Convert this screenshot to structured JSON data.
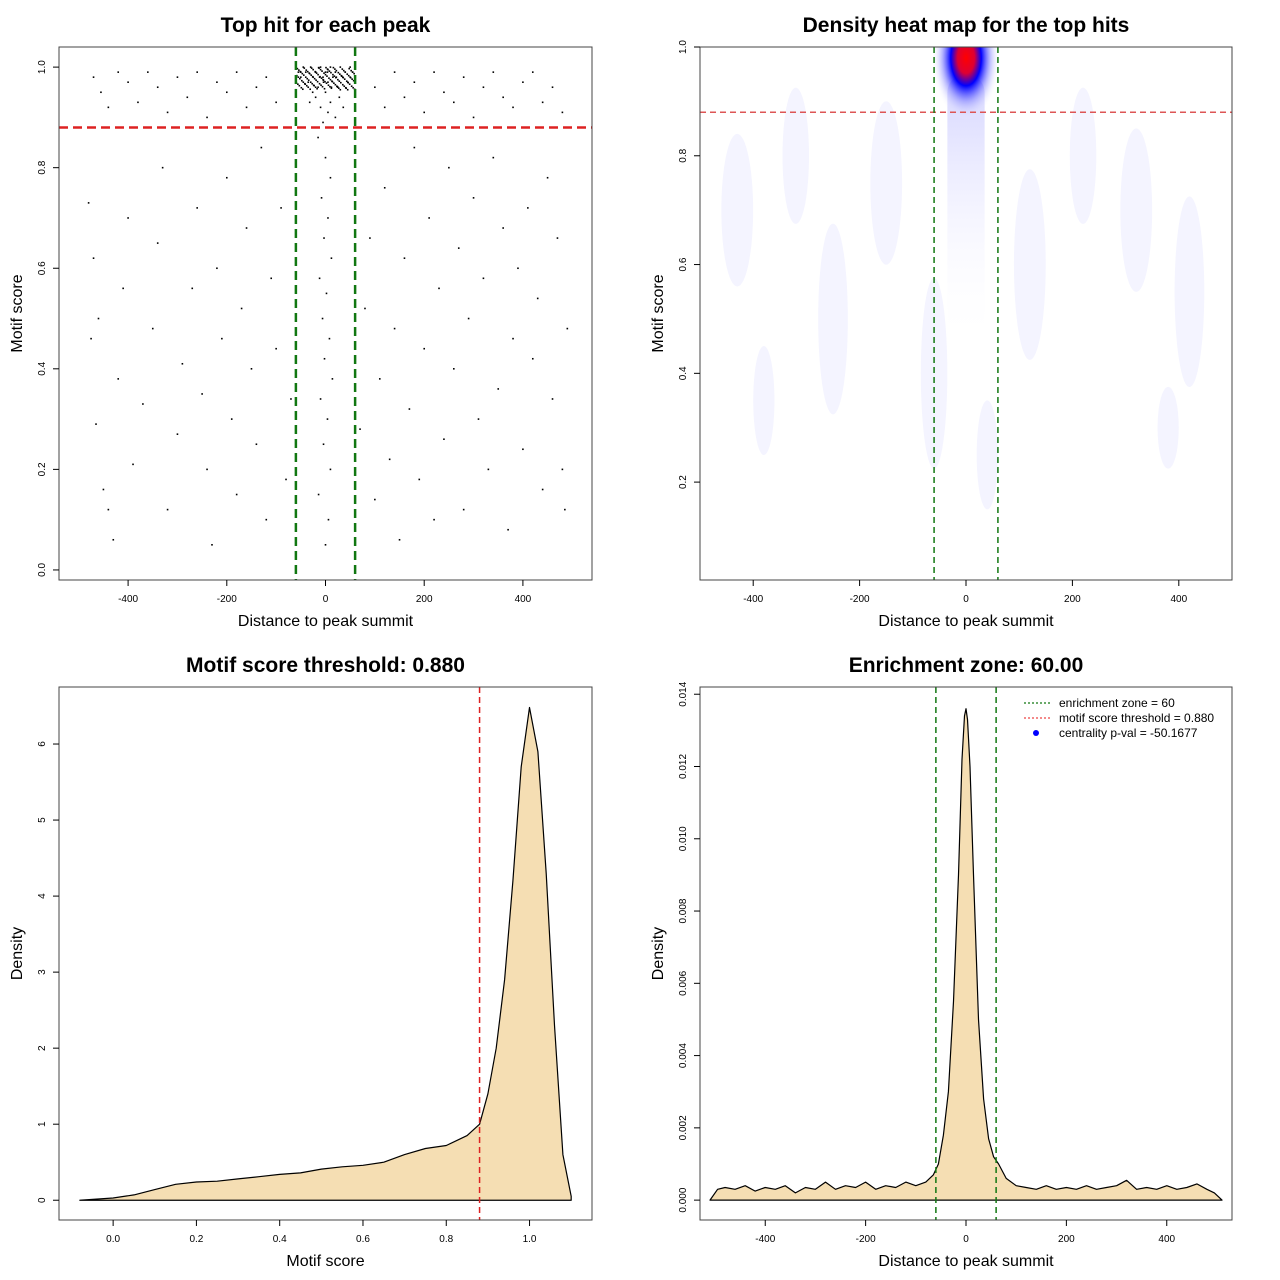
{
  "chart_data": [
    {
      "type": "scatter",
      "title": "Top hit for each peak",
      "xlabel": "Distance to peak summit",
      "ylabel": "Motif score",
      "xlim": [
        -540,
        540
      ],
      "ylim": [
        -0.02,
        1.04
      ],
      "xticks": [
        "-400",
        "-200",
        "0",
        "200",
        "400"
      ],
      "xtick_values": [
        -400,
        -200,
        0,
        200,
        400
      ],
      "yticks": [
        "0.0",
        "0.2",
        "0.4",
        "0.6",
        "0.8",
        "1.0"
      ],
      "ytick_values": [
        0,
        0.2,
        0.4,
        0.6,
        0.8,
        1.0
      ],
      "hlines": [
        {
          "y": 0.88,
          "color": "#dd2222"
        }
      ],
      "vlines": [
        {
          "x": -60,
          "color": "#117711"
        },
        {
          "x": 60,
          "color": "#117711"
        }
      ],
      "points": [
        [
          -470,
          0.98
        ],
        [
          -455,
          0.95
        ],
        [
          -440,
          0.92
        ],
        [
          -420,
          0.99
        ],
        [
          -400,
          0.97
        ],
        [
          -380,
          0.93
        ],
        [
          -360,
          0.99
        ],
        [
          -340,
          0.96
        ],
        [
          -320,
          0.91
        ],
        [
          -300,
          0.98
        ],
        [
          -280,
          0.94
        ],
        [
          -260,
          0.99
        ],
        [
          -240,
          0.9
        ],
        [
          -220,
          0.97
        ],
        [
          -200,
          0.95
        ],
        [
          -180,
          0.99
        ],
        [
          -160,
          0.92
        ],
        [
          -140,
          0.96
        ],
        [
          -120,
          0.98
        ],
        [
          -100,
          0.93
        ],
        [
          100,
          0.96
        ],
        [
          120,
          0.92
        ],
        [
          140,
          0.99
        ],
        [
          160,
          0.94
        ],
        [
          180,
          0.97
        ],
        [
          200,
          0.91
        ],
        [
          220,
          0.99
        ],
        [
          240,
          0.95
        ],
        [
          260,
          0.93
        ],
        [
          280,
          0.98
        ],
        [
          300,
          0.9
        ],
        [
          320,
          0.96
        ],
        [
          340,
          0.99
        ],
        [
          360,
          0.94
        ],
        [
          380,
          0.92
        ],
        [
          400,
          0.97
        ],
        [
          420,
          0.99
        ],
        [
          440,
          0.93
        ],
        [
          460,
          0.96
        ],
        [
          480,
          0.91
        ],
        [
          -480,
          0.73
        ],
        [
          -470,
          0.62
        ],
        [
          -460,
          0.5
        ],
        [
          -475,
          0.46
        ],
        [
          -465,
          0.29
        ],
        [
          -450,
          0.16
        ],
        [
          -440,
          0.12
        ],
        [
          -430,
          0.06
        ],
        [
          -420,
          0.38
        ],
        [
          -410,
          0.56
        ],
        [
          -400,
          0.7
        ],
        [
          -390,
          0.21
        ],
        [
          -370,
          0.33
        ],
        [
          -350,
          0.48
        ],
        [
          -340,
          0.65
        ],
        [
          -330,
          0.8
        ],
        [
          -320,
          0.12
        ],
        [
          -300,
          0.27
        ],
        [
          -290,
          0.41
        ],
        [
          -270,
          0.56
        ],
        [
          -260,
          0.72
        ],
        [
          -250,
          0.35
        ],
        [
          -240,
          0.2
        ],
        [
          -230,
          0.05
        ],
        [
          -220,
          0.6
        ],
        [
          -210,
          0.46
        ],
        [
          -200,
          0.78
        ],
        [
          -190,
          0.3
        ],
        [
          -180,
          0.15
        ],
        [
          -170,
          0.52
        ],
        [
          -160,
          0.68
        ],
        [
          -150,
          0.4
        ],
        [
          -140,
          0.25
        ],
        [
          -130,
          0.84
        ],
        [
          -120,
          0.1
        ],
        [
          -110,
          0.58
        ],
        [
          -100,
          0.44
        ],
        [
          -90,
          0.72
        ],
        [
          -80,
          0.18
        ],
        [
          -70,
          0.34
        ],
        [
          70,
          0.28
        ],
        [
          80,
          0.52
        ],
        [
          90,
          0.66
        ],
        [
          100,
          0.14
        ],
        [
          110,
          0.38
        ],
        [
          120,
          0.76
        ],
        [
          130,
          0.22
        ],
        [
          140,
          0.48
        ],
        [
          150,
          0.06
        ],
        [
          160,
          0.62
        ],
        [
          170,
          0.32
        ],
        [
          180,
          0.84
        ],
        [
          190,
          0.18
        ],
        [
          200,
          0.44
        ],
        [
          210,
          0.7
        ],
        [
          220,
          0.1
        ],
        [
          230,
          0.56
        ],
        [
          240,
          0.26
        ],
        [
          250,
          0.8
        ],
        [
          260,
          0.4
        ],
        [
          270,
          0.64
        ],
        [
          280,
          0.12
        ],
        [
          290,
          0.5
        ],
        [
          300,
          0.74
        ],
        [
          310,
          0.3
        ],
        [
          320,
          0.58
        ],
        [
          330,
          0.2
        ],
        [
          340,
          0.82
        ],
        [
          350,
          0.36
        ],
        [
          360,
          0.68
        ],
        [
          370,
          0.08
        ],
        [
          380,
          0.46
        ],
        [
          390,
          0.6
        ],
        [
          400,
          0.24
        ],
        [
          410,
          0.72
        ],
        [
          420,
          0.42
        ],
        [
          430,
          0.54
        ],
        [
          440,
          0.16
        ],
        [
          450,
          0.78
        ],
        [
          460,
          0.34
        ],
        [
          470,
          0.66
        ],
        [
          480,
          0.2
        ],
        [
          490,
          0.48
        ],
        [
          485,
          0.12
        ],
        [
          -55,
          0.99
        ],
        [
          -50,
          0.98
        ],
        [
          -45,
          1.0
        ],
        [
          -40,
          0.99
        ],
        [
          -35,
          0.97
        ],
        [
          -30,
          1.0
        ],
        [
          -25,
          0.98
        ],
        [
          -20,
          0.99
        ],
        [
          -15,
          0.96
        ],
        [
          -10,
          1.0
        ],
        [
          -5,
          0.98
        ],
        [
          0,
          0.99
        ],
        [
          5,
          0.97
        ],
        [
          10,
          1.0
        ],
        [
          15,
          0.98
        ],
        [
          20,
          0.99
        ],
        [
          25,
          0.96
        ],
        [
          30,
          1.0
        ],
        [
          35,
          0.98
        ],
        [
          40,
          0.99
        ],
        [
          45,
          0.97
        ],
        [
          50,
          1.0
        ],
        [
          55,
          0.99
        ],
        [
          -20,
          0.94
        ],
        [
          -10,
          0.92
        ],
        [
          0,
          0.95
        ],
        [
          10,
          0.93
        ],
        [
          20,
          0.9
        ],
        [
          -5,
          0.89
        ],
        [
          5,
          0.91
        ],
        [
          -15,
          0.86
        ],
        [
          0,
          0.82
        ],
        [
          10,
          0.78
        ],
        [
          -8,
          0.74
        ],
        [
          5,
          0.7
        ],
        [
          -3,
          0.66
        ],
        [
          12,
          0.62
        ],
        [
          -12,
          0.58
        ],
        [
          2,
          0.55
        ],
        [
          -6,
          0.5
        ],
        [
          8,
          0.46
        ],
        [
          -2,
          0.42
        ],
        [
          14,
          0.38
        ],
        [
          -10,
          0.34
        ],
        [
          4,
          0.3
        ],
        [
          -4,
          0.25
        ],
        [
          10,
          0.2
        ],
        [
          -14,
          0.15
        ],
        [
          6,
          0.1
        ],
        [
          0,
          0.05
        ],
        [
          -20,
          0.99
        ],
        [
          -12,
          0.98
        ],
        [
          -4,
          0.97
        ],
        [
          4,
          0.99
        ],
        [
          12,
          0.96
        ],
        [
          22,
          0.98
        ],
        [
          -26,
          0.95
        ],
        [
          28,
          0.94
        ],
        [
          -32,
          0.93
        ],
        [
          36,
          0.92
        ]
      ]
    },
    {
      "type": "heatmap",
      "title": "Density heat map for the top hits",
      "xlabel": "Distance to peak summit",
      "ylabel": "Motif score",
      "xlim": [
        -500,
        500
      ],
      "ylim": [
        0.02,
        1.0
      ],
      "xticks": [
        "-400",
        "-200",
        "0",
        "200",
        "400"
      ],
      "xtick_values": [
        -400,
        -200,
        0,
        200,
        400
      ],
      "yticks": [
        "0.2",
        "0.4",
        "0.6",
        "0.8",
        "1.0"
      ],
      "ytick_values": [
        0.2,
        0.4,
        0.6,
        0.8,
        1.0
      ],
      "hotspot": {
        "x": 0,
        "y": 0.98,
        "color_max": "#ff0000",
        "color_mid": "#0000ff",
        "color_low": "#ffffff"
      },
      "hlines": [
        {
          "y": 0.88,
          "color": "#dd5555"
        }
      ],
      "vlines": [
        {
          "x": -60,
          "color": "#117711"
        },
        {
          "x": 60,
          "color": "#117711"
        }
      ]
    },
    {
      "type": "area",
      "title": "Motif score threshold: 0.880",
      "xlabel": "Motif score",
      "ylabel": "Density",
      "xlim": [
        -0.13,
        1.15
      ],
      "ylim": [
        -0.26,
        6.75
      ],
      "xticks": [
        "0.0",
        "0.2",
        "0.4",
        "0.6",
        "0.8",
        "1.0"
      ],
      "xtick_values": [
        0,
        0.2,
        0.4,
        0.6,
        0.8,
        1.0
      ],
      "yticks": [
        "0",
        "1",
        "2",
        "3",
        "4",
        "5",
        "6"
      ],
      "ytick_values": [
        0,
        1,
        2,
        3,
        4,
        5,
        6
      ],
      "fill": "#f5deb3",
      "x": [
        -0.08,
        0.0,
        0.05,
        0.1,
        0.15,
        0.2,
        0.25,
        0.3,
        0.35,
        0.4,
        0.45,
        0.5,
        0.55,
        0.6,
        0.65,
        0.7,
        0.75,
        0.8,
        0.85,
        0.88,
        0.9,
        0.92,
        0.94,
        0.96,
        0.98,
        1.0,
        1.02,
        1.04,
        1.06,
        1.08,
        1.1
      ],
      "y": [
        0,
        0.03,
        0.07,
        0.14,
        0.21,
        0.24,
        0.25,
        0.28,
        0.31,
        0.34,
        0.36,
        0.41,
        0.44,
        0.46,
        0.5,
        0.6,
        0.68,
        0.72,
        0.85,
        1.0,
        1.4,
        2.0,
        2.9,
        4.2,
        5.7,
        6.48,
        5.9,
        4.3,
        2.3,
        0.6,
        0.05
      ],
      "vlines": [
        {
          "x": 0.88,
          "color": "#dd2222"
        }
      ]
    },
    {
      "type": "area",
      "title": "Enrichment zone: 60.00",
      "xlabel": "Distance to peak summit",
      "ylabel": "Density",
      "xlim": [
        -530,
        530
      ],
      "ylim": [
        -0.00055,
        0.0142
      ],
      "xticks": [
        "-400",
        "-200",
        "0",
        "200",
        "400"
      ],
      "xtick_values": [
        -400,
        -200,
        0,
        200,
        400
      ],
      "yticks": [
        "0.000",
        "0.002",
        "0.004",
        "0.006",
        "0.008",
        "0.010",
        "0.012",
        "0.014"
      ],
      "ytick_values": [
        0,
        0.002,
        0.004,
        0.006,
        0.008,
        0.01,
        0.012,
        0.014
      ],
      "fill": "#f5deb3",
      "x": [
        -510,
        -495,
        -480,
        -460,
        -440,
        -420,
        -400,
        -380,
        -360,
        -340,
        -320,
        -300,
        -280,
        -260,
        -240,
        -220,
        -200,
        -180,
        -160,
        -140,
        -120,
        -100,
        -80,
        -65,
        -55,
        -45,
        -35,
        -25,
        -15,
        -8,
        -3,
        0,
        3,
        8,
        15,
        25,
        35,
        45,
        55,
        65,
        80,
        100,
        120,
        140,
        160,
        180,
        200,
        220,
        240,
        260,
        280,
        300,
        320,
        340,
        360,
        380,
        400,
        420,
        440,
        460,
        480,
        495,
        510
      ],
      "y": [
        0,
        0.0003,
        0.00035,
        0.0003,
        0.0004,
        0.00025,
        0.00035,
        0.0003,
        0.0004,
        0.0002,
        0.00035,
        0.0003,
        0.0005,
        0.0003,
        0.0004,
        0.00035,
        0.0005,
        0.0003,
        0.0004,
        0.00035,
        0.0005,
        0.0004,
        0.0005,
        0.0007,
        0.001,
        0.0018,
        0.003,
        0.0055,
        0.009,
        0.0122,
        0.0134,
        0.0136,
        0.0133,
        0.012,
        0.009,
        0.005,
        0.0028,
        0.0017,
        0.0012,
        0.001,
        0.0006,
        0.0004,
        0.00035,
        0.0003,
        0.0004,
        0.0003,
        0.00035,
        0.0003,
        0.0004,
        0.0003,
        0.00035,
        0.0004,
        0.00055,
        0.0003,
        0.00035,
        0.0003,
        0.0004,
        0.0003,
        0.00035,
        0.00045,
        0.0003,
        0.0002,
        0
      ],
      "vlines": [
        {
          "x": -60,
          "color": "#117711"
        },
        {
          "x": 60,
          "color": "#117711"
        }
      ],
      "legend": {
        "placement": "top-right",
        "entries": [
          {
            "label": "enrichment zone = 60",
            "color": "#117711",
            "style": "dotted-line"
          },
          {
            "label": "motif score threshold = 0.880",
            "color": "#ee4444",
            "style": "dotted-line"
          },
          {
            "label": "centrality p-val = -50.1677",
            "color": "#0000ff",
            "style": "point"
          }
        ]
      }
    }
  ]
}
